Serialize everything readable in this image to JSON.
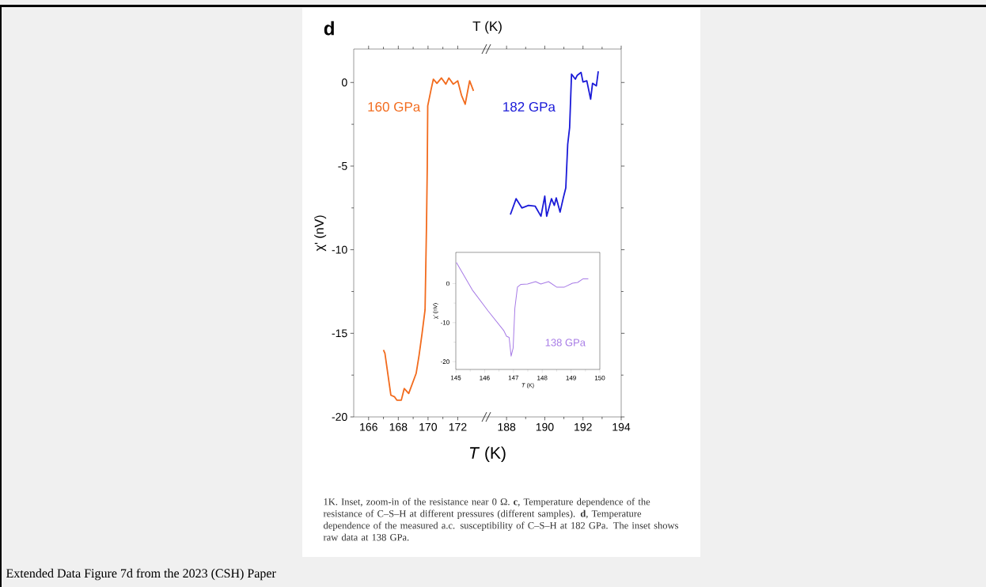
{
  "chart_data": [
    {
      "type": "line",
      "title": "d",
      "xlabel": "*T* (K)",
      "ylabel": "χ' (nV)",
      "x2label": "T (K)",
      "xlim": [
        165,
        174
      ],
      "xticks": [
        166,
        168,
        170,
        172
      ],
      "ylim": [
        -20,
        2
      ],
      "yticks": [
        -20,
        -15,
        -10,
        -5,
        0
      ],
      "series": [
        {
          "name": "160 GPa",
          "color": "#f26b1d",
          "x": [
            167.0,
            167.1,
            167.5,
            167.75,
            167.9,
            168.2,
            168.4,
            168.7,
            169.2,
            169.4,
            169.6,
            169.8,
            169.9,
            169.95,
            169.98,
            170.2,
            170.36,
            170.6,
            170.9,
            171.2,
            171.4,
            171.7,
            172.0,
            172.25,
            172.5,
            172.8,
            173.06
          ],
          "values": [
            -16.0,
            -16.2,
            -18.7,
            -18.8,
            -19.0,
            -19.0,
            -18.3,
            -18.6,
            -17.4,
            -16.3,
            -15.0,
            -13.6,
            -8.4,
            -5.0,
            -1.4,
            -0.44,
            0.2,
            -0.05,
            0.27,
            -0.1,
            0.27,
            -0.1,
            0.1,
            -0.76,
            -1.3,
            0.1,
            -0.5
          ]
        }
      ],
      "annotations": [
        "1K. Inset, zoom-in of the resistance near 0 Ω. **c**, Temperature dependence of the resistance of C–S–H at different pressures (different samples). **d**, Temperature dependence of the measured a.c. susceptibility of C–S–H at 182 GPa. The inset shows raw data at 138 GPa.",
        "Extended Data Figure 7d from the 2023 (CSH) Paper"
      ]
    },
    {
      "type": "line",
      "xlim": [
        187,
        194
      ],
      "xticks": [
        188,
        190,
        192,
        194
      ],
      "ylim": [
        -20,
        2
      ],
      "yticks": [
        -20,
        -15,
        -10,
        -5,
        0
      ],
      "tick_labels": "x",
      "series": [
        {
          "name": "182 GPa",
          "color": "#1a1ad8",
          "x": [
            188.2,
            188.5,
            188.8,
            189.15,
            189.5,
            189.8,
            190.0,
            190.1,
            190.35,
            190.5,
            190.6,
            190.8,
            190.97,
            191.1,
            191.2,
            191.3,
            191.4,
            191.6,
            191.7,
            191.9,
            192.0,
            192.2,
            192.4,
            192.5,
            192.7,
            192.8
          ],
          "values": [
            -7.9,
            -6.95,
            -7.5,
            -7.35,
            -7.4,
            -8.0,
            -6.8,
            -8.0,
            -6.95,
            -7.35,
            -6.9,
            -7.75,
            -6.9,
            -6.3,
            -3.7,
            -2.7,
            0.5,
            0.2,
            0.43,
            0.6,
            0.03,
            0.1,
            -1.0,
            -0.05,
            -0.2,
            0.67
          ]
        }
      ]
    },
    {
      "type": "line",
      "xlabel": "*T* (K)",
      "ylabel": "χ' (nV)",
      "xlim": [
        145,
        150
      ],
      "xticks": [
        145,
        146,
        147,
        148,
        149,
        150
      ],
      "ylim": [
        -22,
        8
      ],
      "yticks": [
        -20,
        -10,
        0
      ],
      "series": [
        {
          "name": "138 GPa",
          "color": "#a77be6",
          "x": [
            145.02,
            145.57,
            146.12,
            146.67,
            146.76,
            146.85,
            146.92,
            146.99,
            147.05,
            147.14,
            147.26,
            147.49,
            147.77,
            147.95,
            148.22,
            148.5,
            148.77,
            149.05,
            149.23,
            149.41,
            149.6
          ],
          "values": [
            5.4,
            -1.6,
            -7.0,
            -12.1,
            -13.5,
            -13.8,
            -18.6,
            -16.5,
            -6.3,
            -0.9,
            -0.2,
            -0.1,
            0.5,
            -0.1,
            0.5,
            -0.9,
            -0.9,
            0.1,
            0.3,
            1.2,
            1.2
          ]
        }
      ]
    }
  ]
}
